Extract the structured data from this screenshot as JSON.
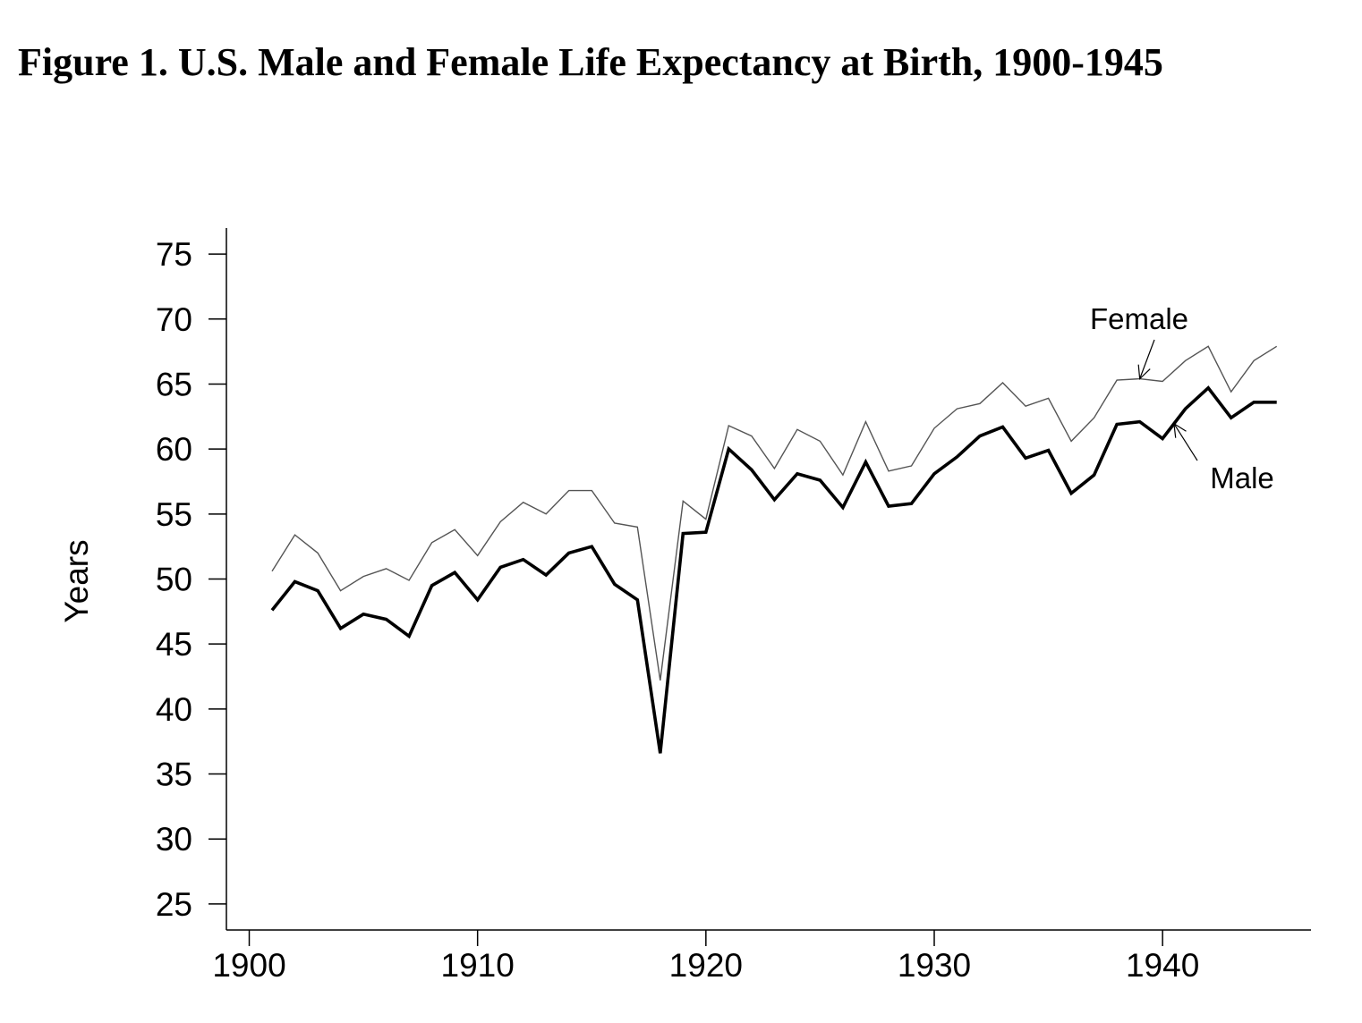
{
  "page": {
    "title": "Figure 1.  U.S. Male and Female Life Expectancy at Birth, 1900-1945"
  },
  "chart_data": {
    "type": "line",
    "title": "Figure 1.  U.S. Male and Female Life Expectancy at Birth, 1900-1945",
    "xlabel": "",
    "ylabel": "Years",
    "xlim": [
      1899,
      1946.5
    ],
    "ylim": [
      23,
      77
    ],
    "x_ticks": [
      1900,
      1910,
      1920,
      1930,
      1940
    ],
    "y_ticks": [
      25,
      30,
      35,
      40,
      45,
      50,
      55,
      60,
      65,
      70,
      75
    ],
    "grid": false,
    "x": [
      1901,
      1902,
      1903,
      1904,
      1905,
      1906,
      1907,
      1908,
      1909,
      1910,
      1911,
      1912,
      1913,
      1914,
      1915,
      1916,
      1917,
      1918,
      1919,
      1920,
      1921,
      1922,
      1923,
      1924,
      1925,
      1926,
      1927,
      1928,
      1929,
      1930,
      1931,
      1932,
      1933,
      1934,
      1935,
      1936,
      1937,
      1938,
      1939,
      1940,
      1941,
      1942,
      1943,
      1944,
      1945
    ],
    "series": [
      {
        "name": "Female",
        "color": "#555555",
        "values": [
          50.6,
          53.4,
          52.0,
          49.1,
          50.2,
          50.8,
          49.9,
          52.8,
          53.8,
          51.8,
          54.4,
          55.9,
          55.0,
          56.8,
          56.8,
          54.3,
          54.0,
          42.2,
          56.0,
          54.6,
          61.8,
          61.0,
          58.5,
          61.5,
          60.6,
          58.0,
          62.1,
          58.3,
          58.7,
          61.6,
          63.1,
          63.5,
          65.1,
          63.3,
          63.9,
          60.6,
          62.4,
          65.3,
          65.4,
          65.2,
          66.8,
          67.9,
          64.4,
          66.8,
          67.9
        ]
      },
      {
        "name": "Male",
        "color": "#000000",
        "values": [
          47.6,
          49.8,
          49.1,
          46.2,
          47.3,
          46.9,
          45.6,
          49.5,
          50.5,
          48.4,
          50.9,
          51.5,
          50.3,
          52.0,
          52.5,
          49.6,
          48.4,
          36.6,
          53.5,
          53.6,
          60.0,
          58.4,
          56.1,
          58.1,
          57.6,
          55.5,
          59.0,
          55.6,
          55.8,
          58.1,
          59.4,
          61.0,
          61.7,
          59.3,
          59.9,
          56.6,
          58.0,
          61.9,
          62.1,
          60.8,
          63.1,
          64.7,
          62.4,
          63.6,
          63.6
        ]
      }
    ],
    "annotations": [
      {
        "text": "Female",
        "series": "Female",
        "points_to_x": 1939
      },
      {
        "text": "Male",
        "series": "Male",
        "points_to_x": 1940.5
      }
    ]
  }
}
